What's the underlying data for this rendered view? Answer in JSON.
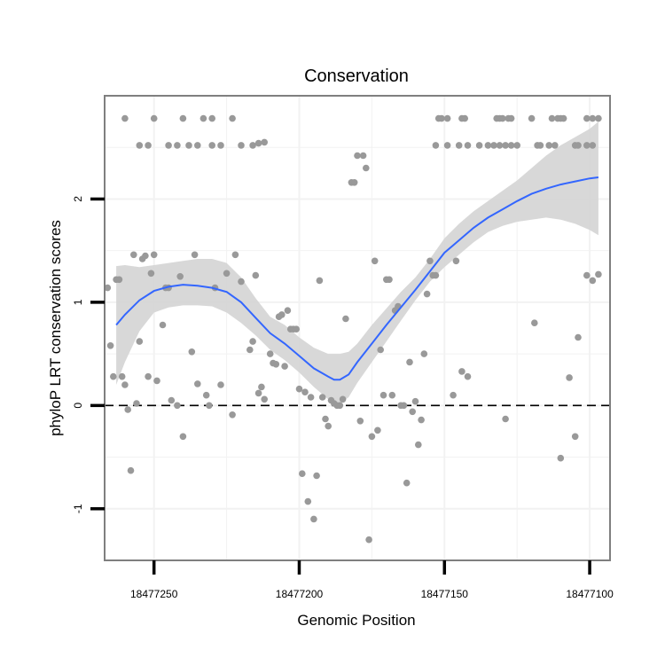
{
  "chart_data": {
    "type": "scatter",
    "title": "Conservation",
    "xlabel": "Genomic Position",
    "ylabel": "phyloP LRT conservation scores",
    "x_reversed": true,
    "xlim": [
      18477267,
      18477093
    ],
    "ylim": [
      -1.5,
      3.0
    ],
    "x_ticks": [
      18477250,
      18477200,
      18477150,
      18477100
    ],
    "x_tick_labels": [
      "18477250",
      "18477200",
      "18477150",
      "18477100"
    ],
    "y_ticks": [
      -1,
      0,
      1,
      2
    ],
    "y_tick_labels": [
      "-1",
      "0",
      "1",
      "2"
    ],
    "grid": true,
    "reference_line": {
      "y": 0,
      "style": "dashed",
      "color": "#000000"
    },
    "colors": {
      "points": "#999999",
      "smooth_line": "#3366FF",
      "confidence_band": "#d4d4d4",
      "panel_border": "#7f7f7f",
      "grid": "#f2f2f2"
    },
    "points": [
      [
        18477260,
        2.78
      ],
      [
        18477250,
        2.78
      ],
      [
        18477240,
        2.78
      ],
      [
        18477233,
        2.78
      ],
      [
        18477230,
        2.78
      ],
      [
        18477223,
        2.78
      ],
      [
        18477255,
        2.52
      ],
      [
        18477252,
        2.52
      ],
      [
        18477245,
        2.52
      ],
      [
        18477242,
        2.52
      ],
      [
        18477238,
        2.52
      ],
      [
        18477235,
        2.52
      ],
      [
        18477230,
        2.52
      ],
      [
        18477227,
        2.52
      ],
      [
        18477220,
        2.52
      ],
      [
        18477216,
        2.52
      ],
      [
        18477214,
        2.54
      ],
      [
        18477212,
        2.55
      ],
      [
        18477266,
        1.14
      ],
      [
        18477265,
        0.58
      ],
      [
        18477264,
        0.28
      ],
      [
        18477263,
        1.22
      ],
      [
        18477262,
        1.22
      ],
      [
        18477261,
        0.28
      ],
      [
        18477260,
        0.2
      ],
      [
        18477259,
        -0.04
      ],
      [
        18477258,
        -0.63
      ],
      [
        18477257,
        1.46
      ],
      [
        18477256,
        0.02
      ],
      [
        18477255,
        0.62
      ],
      [
        18477254,
        1.42
      ],
      [
        18477253,
        1.45
      ],
      [
        18477252,
        0.28
      ],
      [
        18477251,
        1.28
      ],
      [
        18477250,
        1.46
      ],
      [
        18477249,
        0.24
      ],
      [
        18477247,
        0.78
      ],
      [
        18477246,
        1.14
      ],
      [
        18477245,
        1.14
      ],
      [
        18477244,
        0.05
      ],
      [
        18477242,
        0.0
      ],
      [
        18477241,
        1.25
      ],
      [
        18477240,
        -0.3
      ],
      [
        18477237,
        0.52
      ],
      [
        18477236,
        1.46
      ],
      [
        18477235,
        0.21
      ],
      [
        18477232,
        0.1
      ],
      [
        18477231,
        0.0
      ],
      [
        18477229,
        1.14
      ],
      [
        18477227,
        0.2
      ],
      [
        18477225,
        1.28
      ],
      [
        18477223,
        -0.09
      ],
      [
        18477222,
        1.46
      ],
      [
        18477220,
        1.2
      ],
      [
        18477217,
        0.54
      ],
      [
        18477216,
        0.62
      ],
      [
        18477215,
        1.26
      ],
      [
        18477214,
        0.12
      ],
      [
        18477213,
        0.18
      ],
      [
        18477212,
        0.06
      ],
      [
        18477210,
        0.5
      ],
      [
        18477209,
        0.41
      ],
      [
        18477208,
        0.4
      ],
      [
        18477207,
        0.86
      ],
      [
        18477206,
        0.88
      ],
      [
        18477205,
        0.38
      ],
      [
        18477204,
        0.92
      ],
      [
        18477203,
        0.74
      ],
      [
        18477202,
        0.74
      ],
      [
        18477201,
        0.74
      ],
      [
        18477200,
        0.16
      ],
      [
        18477199,
        -0.66
      ],
      [
        18477198,
        0.13
      ],
      [
        18477197,
        -0.93
      ],
      [
        18477196,
        0.08
      ],
      [
        18477195,
        -1.1
      ],
      [
        18477194,
        -0.68
      ],
      [
        18477193,
        1.21
      ],
      [
        18477192,
        0.08
      ],
      [
        18477191,
        -0.13
      ],
      [
        18477190,
        -0.2
      ],
      [
        18477189,
        0.05
      ],
      [
        18477188,
        0.02
      ],
      [
        18477187,
        0.0
      ],
      [
        18477186,
        0.0
      ],
      [
        18477185,
        0.06
      ],
      [
        18477184,
        0.84
      ],
      [
        18477182,
        2.16
      ],
      [
        18477181,
        2.16
      ],
      [
        18477180,
        2.42
      ],
      [
        18477179,
        -0.15
      ],
      [
        18477178,
        2.42
      ],
      [
        18477177,
        2.3
      ],
      [
        18477176,
        -1.3
      ],
      [
        18477175,
        -0.3
      ],
      [
        18477174,
        1.4
      ],
      [
        18477173,
        -0.24
      ],
      [
        18477172,
        0.54
      ],
      [
        18477171,
        0.1
      ],
      [
        18477170,
        1.22
      ],
      [
        18477169,
        1.22
      ],
      [
        18477168,
        0.1
      ],
      [
        18477167,
        0.92
      ],
      [
        18477166,
        0.96
      ],
      [
        18477165,
        0.0
      ],
      [
        18477164,
        0.0
      ],
      [
        18477163,
        -0.75
      ],
      [
        18477162,
        0.42
      ],
      [
        18477161,
        -0.06
      ],
      [
        18477160,
        0.04
      ],
      [
        18477159,
        -0.38
      ],
      [
        18477158,
        -0.14
      ],
      [
        18477157,
        0.5
      ],
      [
        18477156,
        1.08
      ],
      [
        18477155,
        1.4
      ],
      [
        18477154,
        1.26
      ],
      [
        18477153,
        1.26
      ],
      [
        18477152,
        2.78
      ],
      [
        18477151,
        2.78
      ],
      [
        18477149,
        2.78
      ],
      [
        18477144,
        2.78
      ],
      [
        18477143,
        2.78
      ],
      [
        18477132,
        2.78
      ],
      [
        18477131,
        2.78
      ],
      [
        18477130,
        2.78
      ],
      [
        18477128,
        2.78
      ],
      [
        18477127,
        2.78
      ],
      [
        18477120,
        2.78
      ],
      [
        18477113,
        2.78
      ],
      [
        18477111,
        2.78
      ],
      [
        18477110,
        2.78
      ],
      [
        18477109,
        2.78
      ],
      [
        18477101,
        2.78
      ],
      [
        18477099,
        2.78
      ],
      [
        18477097,
        2.78
      ],
      [
        18477153,
        2.52
      ],
      [
        18477149,
        2.52
      ],
      [
        18477145,
        2.52
      ],
      [
        18477142,
        2.52
      ],
      [
        18477138,
        2.52
      ],
      [
        18477135,
        2.52
      ],
      [
        18477133,
        2.52
      ],
      [
        18477131,
        2.52
      ],
      [
        18477129,
        2.52
      ],
      [
        18477127,
        2.52
      ],
      [
        18477125,
        2.52
      ],
      [
        18477118,
        2.52
      ],
      [
        18477117,
        2.52
      ],
      [
        18477114,
        2.52
      ],
      [
        18477112,
        2.52
      ],
      [
        18477105,
        2.52
      ],
      [
        18477104,
        2.52
      ],
      [
        18477101,
        2.52
      ],
      [
        18477099,
        2.52
      ],
      [
        18477147,
        0.1
      ],
      [
        18477146,
        1.4
      ],
      [
        18477144,
        0.33
      ],
      [
        18477142,
        0.28
      ],
      [
        18477129,
        -0.13
      ],
      [
        18477119,
        0.8
      ],
      [
        18477110,
        -0.51
      ],
      [
        18477107,
        0.27
      ],
      [
        18477105,
        -0.3
      ],
      [
        18477104,
        0.66
      ],
      [
        18477101,
        1.26
      ],
      [
        18477099,
        1.21
      ],
      [
        18477097,
        1.27
      ]
    ],
    "smooth": {
      "x": [
        18477263,
        18477260,
        18477255,
        18477250,
        18477245,
        18477240,
        18477235,
        18477230,
        18477225,
        18477220,
        18477215,
        18477210,
        18477205,
        18477200,
        18477195,
        18477190,
        18477188,
        18477186,
        18477183,
        18477180,
        18477175,
        18477170,
        18477165,
        18477160,
        18477155,
        18477150,
        18477145,
        18477140,
        18477135,
        18477130,
        18477125,
        18477120,
        18477115,
        18477110,
        18477105,
        18477100,
        18477097
      ],
      "y": [
        0.78,
        0.88,
        1.02,
        1.11,
        1.15,
        1.17,
        1.16,
        1.14,
        1.1,
        1.0,
        0.85,
        0.7,
        0.6,
        0.48,
        0.36,
        0.28,
        0.25,
        0.25,
        0.3,
        0.42,
        0.6,
        0.78,
        0.95,
        1.12,
        1.3,
        1.48,
        1.6,
        1.72,
        1.82,
        1.9,
        1.98,
        2.05,
        2.1,
        2.14,
        2.17,
        2.2,
        2.21
      ],
      "lower": [
        0.2,
        0.42,
        0.72,
        0.9,
        0.95,
        0.97,
        0.97,
        0.96,
        0.9,
        0.8,
        0.68,
        0.54,
        0.44,
        0.32,
        0.18,
        0.06,
        0.02,
        0.02,
        0.08,
        0.22,
        0.42,
        0.62,
        0.82,
        1.02,
        1.2,
        1.34,
        1.46,
        1.58,
        1.68,
        1.74,
        1.78,
        1.8,
        1.82,
        1.8,
        1.76,
        1.7,
        1.65
      ],
      "upper": [
        1.35,
        1.36,
        1.34,
        1.36,
        1.38,
        1.4,
        1.42,
        1.42,
        1.38,
        1.24,
        1.04,
        0.86,
        0.78,
        0.66,
        0.56,
        0.5,
        0.5,
        0.5,
        0.52,
        0.6,
        0.78,
        0.94,
        1.1,
        1.24,
        1.42,
        1.62,
        1.76,
        1.88,
        1.98,
        2.08,
        2.18,
        2.3,
        2.42,
        2.52,
        2.6,
        2.68,
        2.75
      ]
    }
  }
}
